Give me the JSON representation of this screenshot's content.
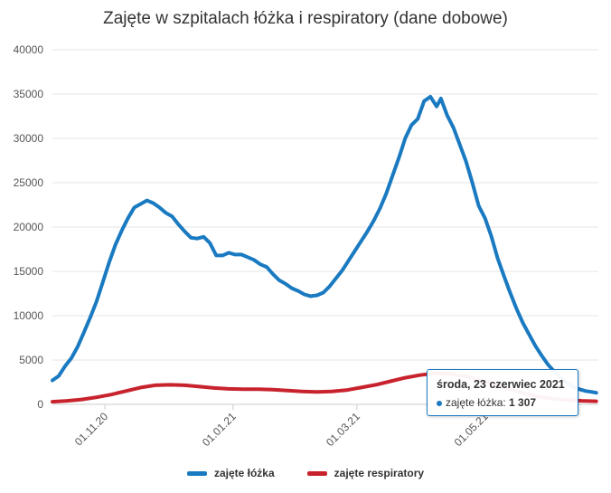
{
  "colors": {
    "beds": "#1a7ac1",
    "resp": "#c8232d",
    "grid": "#e6e6e6",
    "tooltip_border": "#1a7ac1"
  },
  "chart_data": {
    "type": "line",
    "title": "Zajęte w szpitalach łóżka i respiratory (dane dobowe)",
    "xlabel": "",
    "ylabel": "",
    "ylim": [
      0,
      40000
    ],
    "y_ticks": [
      "0",
      "5000",
      "10000",
      "15000",
      "20000",
      "25000",
      "30000",
      "35000",
      "40000"
    ],
    "x_ticks": [
      {
        "date": "2020-11-01",
        "label": "01.11.20"
      },
      {
        "date": "2021-01-01",
        "label": "01.01.21"
      },
      {
        "date": "2021-03-01",
        "label": "01.03.21"
      },
      {
        "date": "2021-05-01",
        "label": "01.05.21"
      }
    ],
    "x_range": [
      "2020-10-07",
      "2021-06-24"
    ],
    "grid": "horizontal",
    "legend_position": "bottom",
    "series": [
      {
        "name": "zajęte łóżka",
        "points": [
          [
            "2020-10-07",
            2700
          ],
          [
            "2020-10-10",
            3200
          ],
          [
            "2020-10-13",
            4300
          ],
          [
            "2020-10-16",
            5200
          ],
          [
            "2020-10-19",
            6500
          ],
          [
            "2020-10-22",
            8100
          ],
          [
            "2020-10-25",
            9800
          ],
          [
            "2020-10-28",
            11600
          ],
          [
            "2020-10-31",
            13800
          ],
          [
            "2020-11-03",
            16000
          ],
          [
            "2020-11-06",
            18000
          ],
          [
            "2020-11-09",
            19600
          ],
          [
            "2020-11-12",
            21000
          ],
          [
            "2020-11-15",
            22200
          ],
          [
            "2020-11-18",
            22600
          ],
          [
            "2020-11-21",
            23000
          ],
          [
            "2020-11-24",
            22700
          ],
          [
            "2020-11-27",
            22200
          ],
          [
            "2020-11-30",
            21600
          ],
          [
            "2020-12-03",
            21200
          ],
          [
            "2020-12-06",
            20300
          ],
          [
            "2020-12-09",
            19500
          ],
          [
            "2020-12-12",
            18800
          ],
          [
            "2020-12-15",
            18700
          ],
          [
            "2020-12-18",
            18900
          ],
          [
            "2020-12-21",
            18200
          ],
          [
            "2020-12-24",
            16800
          ],
          [
            "2020-12-27",
            16800
          ],
          [
            "2020-12-30",
            17100
          ],
          [
            "2021-01-02",
            16900
          ],
          [
            "2021-01-05",
            16900
          ],
          [
            "2021-01-08",
            16600
          ],
          [
            "2021-01-11",
            16300
          ],
          [
            "2021-01-14",
            15800
          ],
          [
            "2021-01-17",
            15500
          ],
          [
            "2021-01-20",
            14700
          ],
          [
            "2021-01-23",
            14000
          ],
          [
            "2021-01-26",
            13600
          ],
          [
            "2021-01-29",
            13100
          ],
          [
            "2021-02-01",
            12800
          ],
          [
            "2021-02-04",
            12400
          ],
          [
            "2021-02-07",
            12200
          ],
          [
            "2021-02-10",
            12300
          ],
          [
            "2021-02-13",
            12600
          ],
          [
            "2021-02-16",
            13300
          ],
          [
            "2021-02-19",
            14200
          ],
          [
            "2021-02-22",
            15100
          ],
          [
            "2021-02-25",
            16200
          ],
          [
            "2021-02-28",
            17300
          ],
          [
            "2021-03-03",
            18400
          ],
          [
            "2021-03-06",
            19500
          ],
          [
            "2021-03-09",
            20700
          ],
          [
            "2021-03-12",
            22100
          ],
          [
            "2021-03-15",
            23800
          ],
          [
            "2021-03-18",
            25800
          ],
          [
            "2021-03-21",
            27800
          ],
          [
            "2021-03-24",
            30000
          ],
          [
            "2021-03-27",
            31500
          ],
          [
            "2021-03-30",
            32200
          ],
          [
            "2021-04-02",
            34200
          ],
          [
            "2021-04-05",
            34700
          ],
          [
            "2021-04-08",
            33600
          ],
          [
            "2021-04-10",
            34500
          ],
          [
            "2021-04-13",
            32600
          ],
          [
            "2021-04-16",
            31200
          ],
          [
            "2021-04-19",
            29300
          ],
          [
            "2021-04-22",
            27400
          ],
          [
            "2021-04-25",
            25000
          ],
          [
            "2021-04-28",
            22400
          ],
          [
            "2021-05-01",
            21000
          ],
          [
            "2021-05-04",
            19000
          ],
          [
            "2021-05-07",
            16500
          ],
          [
            "2021-05-10",
            14500
          ],
          [
            "2021-05-13",
            12600
          ],
          [
            "2021-05-16",
            10800
          ],
          [
            "2021-05-19",
            9200
          ],
          [
            "2021-05-22",
            7900
          ],
          [
            "2021-05-25",
            6600
          ],
          [
            "2021-05-28",
            5500
          ],
          [
            "2021-05-31",
            4500
          ],
          [
            "2021-06-03",
            3700
          ],
          [
            "2021-06-06",
            3000
          ],
          [
            "2021-06-09",
            2400
          ],
          [
            "2021-06-12",
            2000
          ],
          [
            "2021-06-15",
            1700
          ],
          [
            "2021-06-18",
            1500
          ],
          [
            "2021-06-21",
            1400
          ],
          [
            "2021-06-23",
            1307
          ]
        ]
      },
      {
        "name": "zajęte respiratory",
        "points": [
          [
            "2020-10-07",
            300
          ],
          [
            "2020-10-14",
            400
          ],
          [
            "2020-10-21",
            550
          ],
          [
            "2020-10-28",
            800
          ],
          [
            "2020-11-04",
            1100
          ],
          [
            "2020-11-11",
            1500
          ],
          [
            "2020-11-18",
            1900
          ],
          [
            "2020-11-25",
            2150
          ],
          [
            "2020-12-02",
            2200
          ],
          [
            "2020-12-09",
            2150
          ],
          [
            "2020-12-16",
            2000
          ],
          [
            "2020-12-23",
            1850
          ],
          [
            "2020-12-30",
            1750
          ],
          [
            "2021-01-06",
            1700
          ],
          [
            "2021-01-13",
            1700
          ],
          [
            "2021-01-20",
            1650
          ],
          [
            "2021-01-27",
            1550
          ],
          [
            "2021-02-03",
            1450
          ],
          [
            "2021-02-10",
            1400
          ],
          [
            "2021-02-17",
            1450
          ],
          [
            "2021-02-24",
            1600
          ],
          [
            "2021-03-03",
            1900
          ],
          [
            "2021-03-10",
            2200
          ],
          [
            "2021-03-17",
            2600
          ],
          [
            "2021-03-24",
            3000
          ],
          [
            "2021-03-31",
            3300
          ],
          [
            "2021-04-07",
            3500
          ],
          [
            "2021-04-14",
            3450
          ],
          [
            "2021-04-21",
            3200
          ],
          [
            "2021-04-28",
            2800
          ],
          [
            "2021-05-05",
            2300
          ],
          [
            "2021-05-12",
            1800
          ],
          [
            "2021-05-19",
            1300
          ],
          [
            "2021-05-26",
            900
          ],
          [
            "2021-06-02",
            650
          ],
          [
            "2021-06-09",
            500
          ],
          [
            "2021-06-16",
            400
          ],
          [
            "2021-06-23",
            350
          ]
        ]
      }
    ]
  },
  "tooltip": {
    "date": "środa, 23 czerwiec 2021",
    "label": "zajęte łóżka:",
    "value": "1 307"
  },
  "legend": {
    "beds": "zajęte łóżka",
    "resp": "zajęte respiratory"
  }
}
